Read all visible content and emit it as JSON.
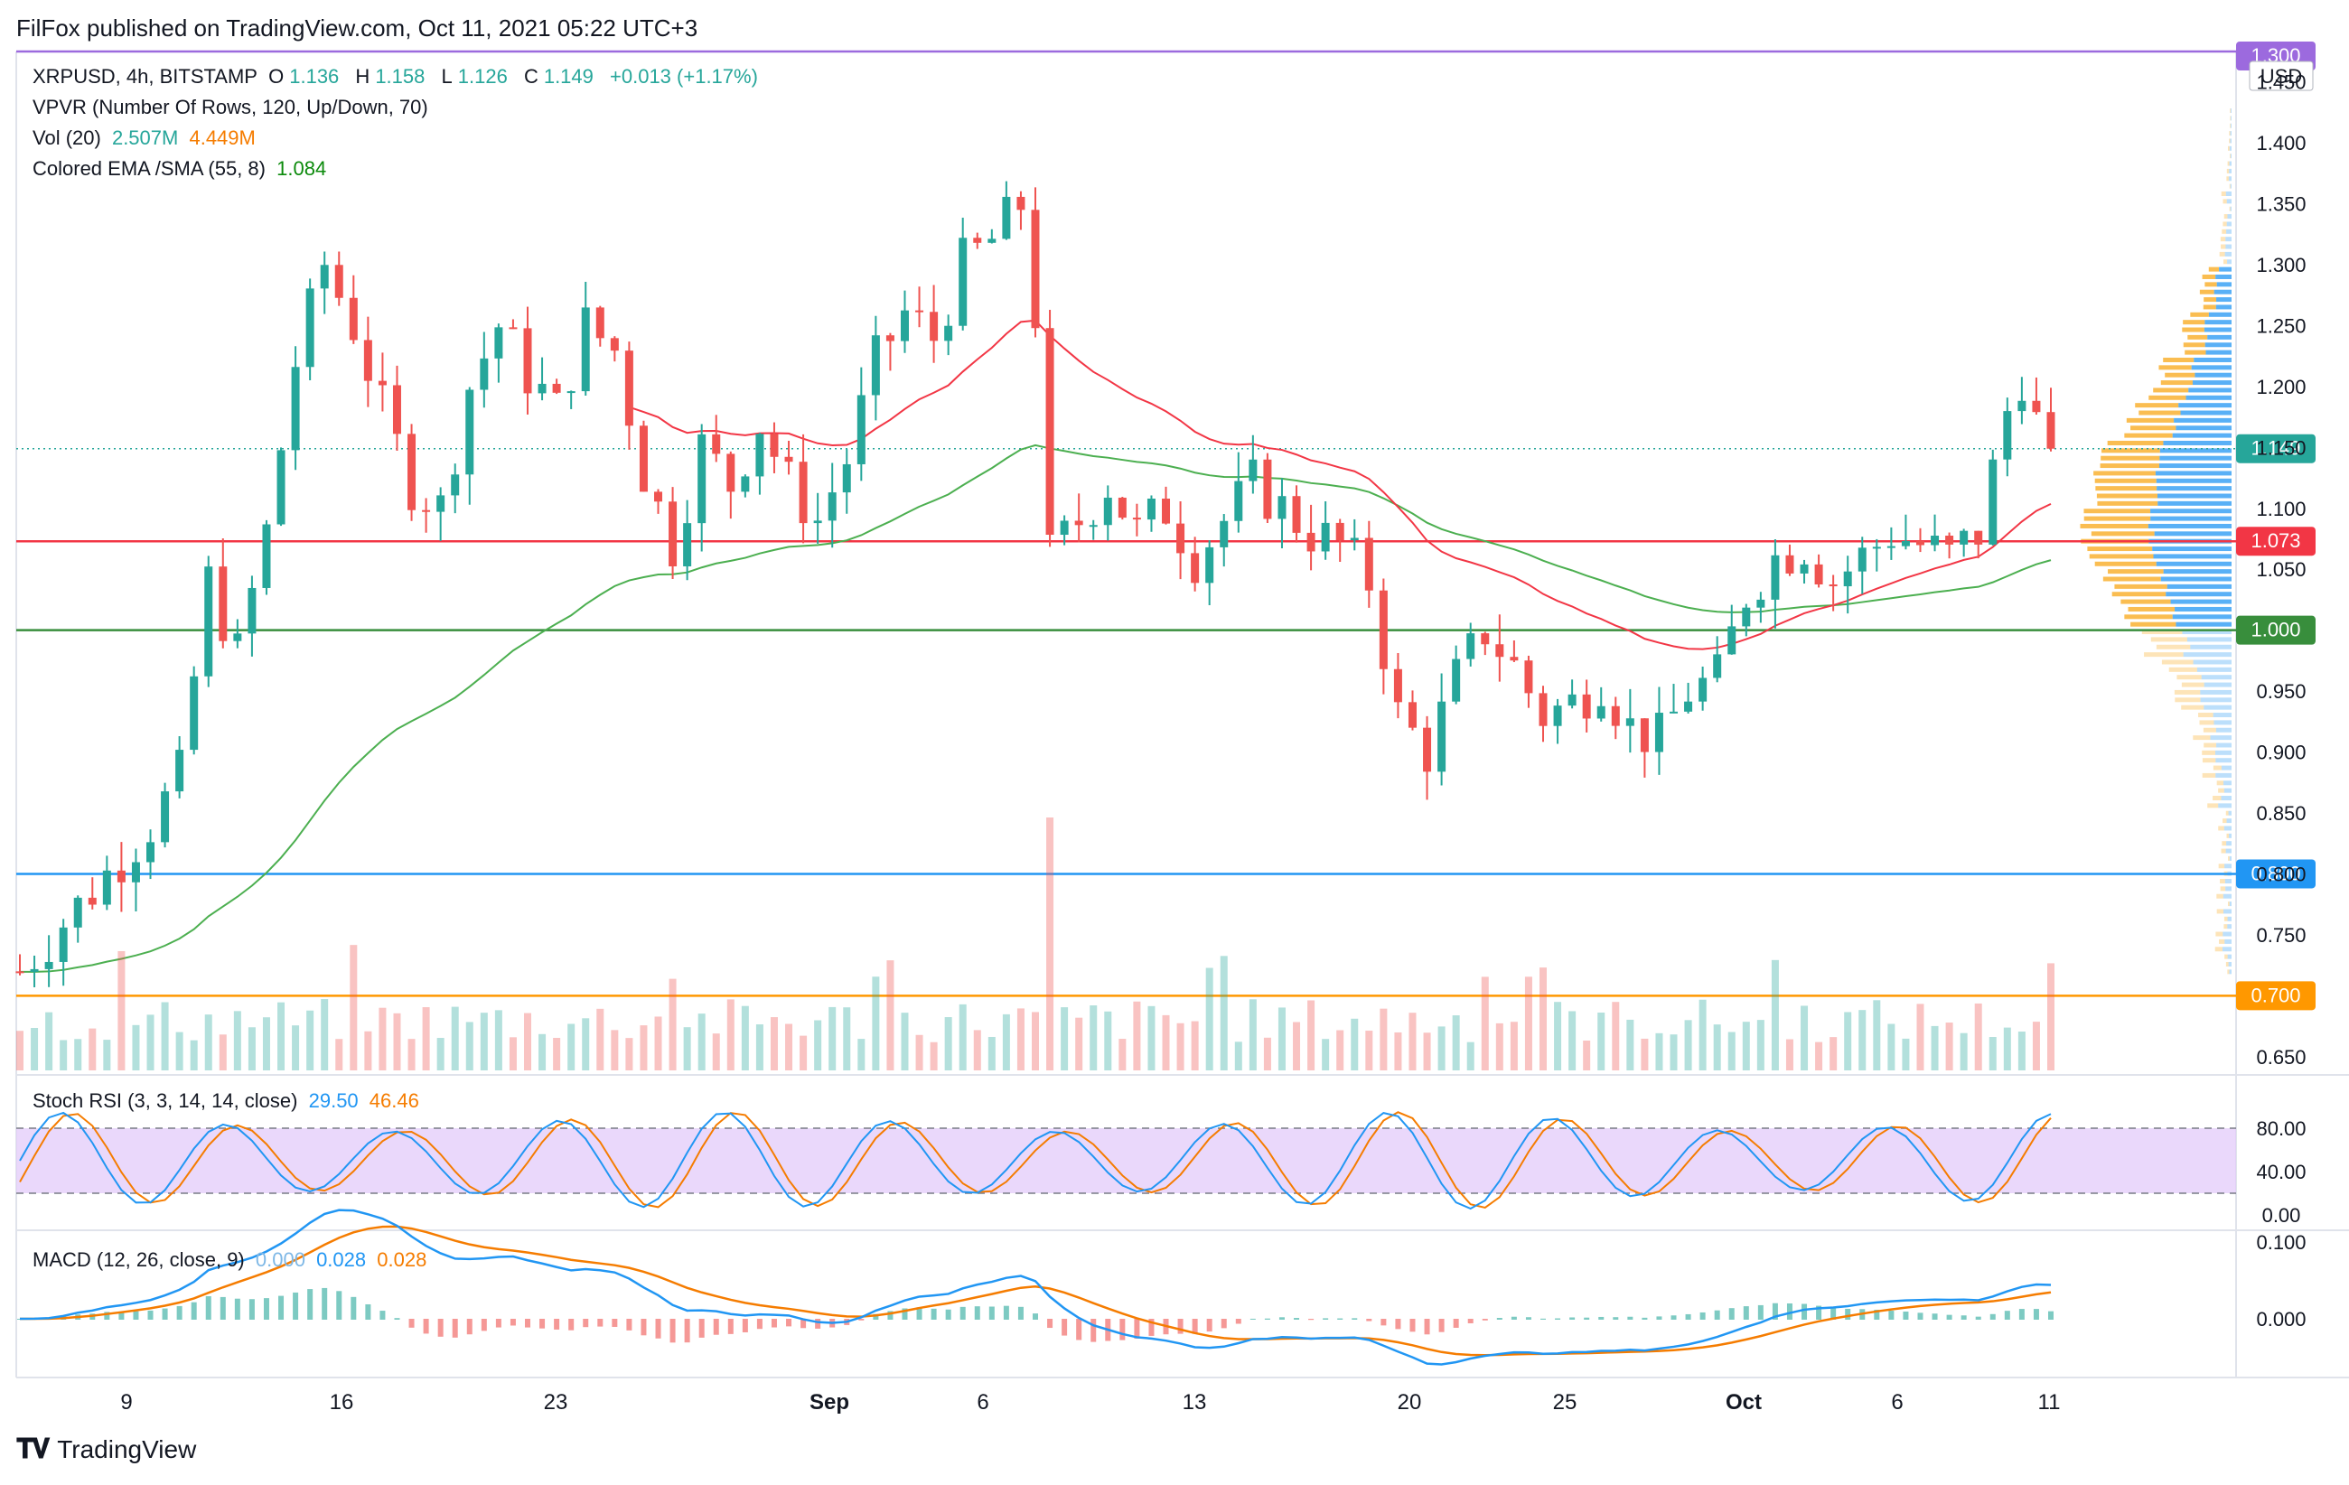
{
  "header": {
    "published": "FilFox published on TradingView.com, Oct 11, 2021 05:22 UTC+3"
  },
  "legend": {
    "symbol": "XRPUSD, 4h, BITSTAMP",
    "o_label": "O",
    "o_val": "1.136",
    "h_label": "H",
    "h_val": "1.158",
    "l_label": "L",
    "l_val": "1.126",
    "c_label": "C",
    "c_val": "1.149",
    "change": "+0.013 (+1.17%)",
    "vpvr": "VPVR (Number Of Rows, 120, Up/Down, 70)",
    "vol_label": "Vol (20)",
    "vol_val1": "2.507M",
    "vol_val2": "4.449M",
    "ema_label": "Colored EMA /SMA (55, 8)",
    "ema_val": "1.084"
  },
  "stoch_legend": {
    "label": "Stoch RSI (3, 3, 14, 14, close)",
    "k": "29.50",
    "d": "46.46"
  },
  "macd_legend": {
    "label": "MACD (12, 26, close, 9)",
    "hist": "0.000",
    "macd": "0.028",
    "signal": "0.028"
  },
  "footer": {
    "brand": "TradingView"
  },
  "colors": {
    "up": "#26a69a",
    "down": "#ef5350",
    "ema": "#4caf50",
    "sma_red": "#f23645",
    "purple_line": "#9c6ade",
    "stoch_fill": "#e1c8fa",
    "k_line": "#2196f3",
    "d_line": "#f57c00",
    "vpvr_up": "#2196f3",
    "vpvr_down": "#f9b233"
  },
  "chart_data": {
    "type": "candlestick",
    "symbol": "XRPUSD",
    "timeframe": "4h",
    "exchange": "BITSTAMP",
    "y_axis_unit": "USD",
    "price_ticks": [
      "1.450",
      "1.400",
      "1.350",
      "1.300",
      "1.250",
      "1.200",
      "1.150",
      "1.100",
      "1.050",
      "1.000",
      "0.950",
      "0.900",
      "0.850",
      "0.800",
      "0.750",
      "0.700",
      "0.650"
    ],
    "price_range": [
      0.635,
      1.475
    ],
    "x_tick_labels": [
      "9",
      "16",
      "23",
      "Sep",
      "6",
      "13",
      "20",
      "25",
      "Oct",
      "6",
      "11"
    ],
    "current_price": {
      "label": "1.149",
      "value": 1.149
    },
    "horizontal_levels": [
      {
        "label": "1.300",
        "value": 1.3,
        "color": "#9c6ade"
      },
      {
        "label": "1.073",
        "value": 1.073,
        "color": "#f23645"
      },
      {
        "label": "1.000",
        "value": 1.0,
        "color": "#388e3c"
      },
      {
        "label": "0.800",
        "value": 0.8,
        "color": "#2196f3"
      },
      {
        "label": "0.700",
        "value": 0.7,
        "color": "#ff9800"
      }
    ],
    "price_path": [
      [
        0,
        0.72
      ],
      [
        3,
        0.76
      ],
      [
        6,
        0.8
      ],
      [
        9,
        0.84
      ],
      [
        11,
        0.88
      ],
      [
        13,
        1.04
      ],
      [
        15,
        0.98
      ],
      [
        17,
        1.08
      ],
      [
        19,
        1.22
      ],
      [
        21,
        1.3
      ],
      [
        23,
        1.25
      ],
      [
        25,
        1.18
      ],
      [
        27,
        1.12
      ],
      [
        29,
        1.1
      ],
      [
        31,
        1.2
      ],
      [
        33,
        1.25
      ],
      [
        35,
        1.21
      ],
      [
        37,
        1.18
      ],
      [
        39,
        1.25
      ],
      [
        41,
        1.23
      ],
      [
        43,
        1.13
      ],
      [
        45,
        1.07
      ],
      [
        47,
        1.15
      ],
      [
        49,
        1.12
      ],
      [
        51,
        1.17
      ],
      [
        53,
        1.12
      ],
      [
        55,
        1.09
      ],
      [
        57,
        1.14
      ],
      [
        59,
        1.22
      ],
      [
        61,
        1.26
      ],
      [
        63,
        1.24
      ],
      [
        65,
        1.3
      ],
      [
        67,
        1.32
      ],
      [
        69,
        1.35
      ],
      [
        70,
        1.26
      ],
      [
        71,
        1.06
      ],
      [
        73,
        1.09
      ],
      [
        75,
        1.12
      ],
      [
        77,
        1.08
      ],
      [
        79,
        1.1
      ],
      [
        81,
        1.06
      ],
      [
        83,
        1.09
      ],
      [
        85,
        1.12
      ],
      [
        87,
        1.1
      ],
      [
        89,
        1.08
      ],
      [
        91,
        1.07
      ],
      [
        93,
        1.04
      ],
      [
        95,
        0.93
      ],
      [
        97,
        0.9
      ],
      [
        99,
        0.96
      ],
      [
        101,
        1.0
      ],
      [
        103,
        0.97
      ],
      [
        105,
        0.93
      ],
      [
        107,
        0.94
      ],
      [
        109,
        0.96
      ],
      [
        111,
        0.92
      ],
      [
        113,
        0.91
      ],
      [
        115,
        0.95
      ],
      [
        117,
        0.96
      ],
      [
        119,
        1.03
      ],
      [
        121,
        1.06
      ],
      [
        123,
        1.07
      ],
      [
        125,
        1.04
      ],
      [
        127,
        1.06
      ],
      [
        129,
        1.08
      ],
      [
        131,
        1.07
      ],
      [
        133,
        1.06
      ],
      [
        135,
        1.08
      ],
      [
        137,
        1.18
      ],
      [
        138,
        1.21
      ],
      [
        139,
        1.17
      ],
      [
        140,
        1.149
      ]
    ],
    "ema_55": {
      "label": "EMA 55",
      "value": 1.084
    },
    "volume": {
      "label": "Vol (20)",
      "values": [
        "2.507M",
        "4.449M"
      ]
    },
    "stoch_rsi": {
      "k": 29.5,
      "d": 46.46,
      "ticks": [
        "80.00",
        "40.00",
        "0.00"
      ],
      "band": [
        20,
        80
      ]
    },
    "macd": {
      "macd": 0.028,
      "signal": 0.028,
      "histogram": 0.0,
      "ticks": [
        "0.100",
        "0.000"
      ]
    }
  }
}
